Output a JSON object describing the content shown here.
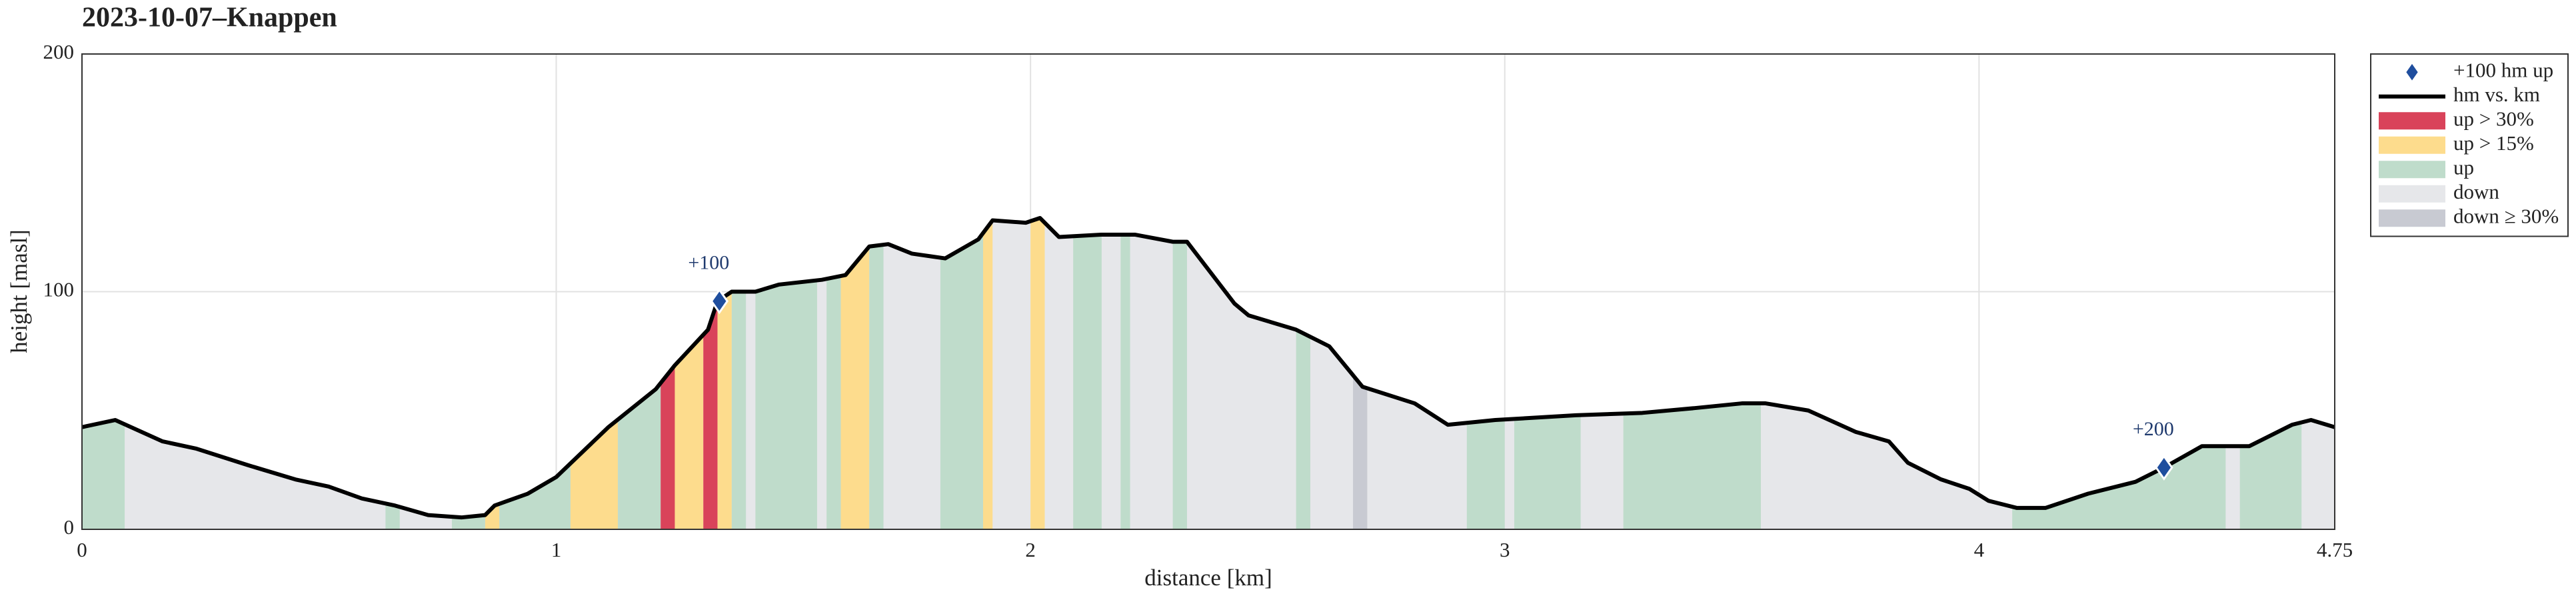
{
  "chart_data": {
    "type": "area",
    "title": "2023-10-07–Knappen",
    "xlabel": "distance [km]",
    "ylabel": "height [masl]",
    "xlim": [
      0,
      4.75
    ],
    "xticks": [
      0,
      1,
      2,
      3,
      4,
      4.75
    ],
    "ylim": [
      0,
      200
    ],
    "yticks": [
      0,
      100,
      200
    ],
    "grid": true,
    "legend": "outside right",
    "line": {
      "name": "hm vs. km",
      "color": "#000000",
      "x": [
        0,
        0.07,
        0.17,
        0.24,
        0.35,
        0.45,
        0.52,
        0.59,
        0.66,
        0.73,
        0.8,
        0.85,
        0.87,
        0.94,
        1.0,
        1.11,
        1.16,
        1.21,
        1.25,
        1.32,
        1.34,
        1.37,
        1.42,
        1.47,
        1.56,
        1.61,
        1.66,
        1.7,
        1.75,
        1.82,
        1.89,
        1.92,
        1.99,
        2.02,
        2.06,
        2.15,
        2.22,
        2.3,
        2.33,
        2.43,
        2.46,
        2.56,
        2.63,
        2.7,
        2.81,
        2.88,
        2.98,
        3.15,
        3.29,
        3.4,
        3.5,
        3.55,
        3.64,
        3.74,
        3.81,
        3.85,
        3.92,
        3.98,
        4.02,
        4.08,
        4.14,
        4.23,
        4.33,
        4.39,
        4.47,
        4.54,
        4.57,
        4.66,
        4.7,
        4.75
      ],
      "values": [
        43,
        46,
        37,
        34,
        27,
        21,
        18,
        13,
        10,
        6,
        5,
        6,
        10,
        15,
        22,
        43,
        51,
        59,
        69,
        84,
        96,
        100,
        100,
        103,
        105,
        107,
        119,
        120,
        116,
        114,
        122,
        130,
        129,
        131,
        123,
        124,
        124,
        121,
        121,
        95,
        90,
        84,
        77,
        60,
        53,
        44,
        46,
        48,
        49,
        51,
        53,
        53,
        50,
        41,
        37,
        28,
        21,
        17,
        12,
        9,
        9,
        15,
        20,
        26,
        35,
        35,
        35,
        44,
        46,
        43
      ]
    },
    "markers": {
      "name": "+100 hm up",
      "color": "#1f4e9e",
      "x": [
        1.344,
        4.39
      ],
      "values": [
        96,
        26
      ],
      "labels": [
        "+100",
        "+200"
      ]
    },
    "categories": [
      {
        "name": "up > 30%",
        "color": "#d9435a",
        "segments": [
          [
            1.22,
            1.25
          ],
          [
            1.31,
            1.34
          ]
        ]
      },
      {
        "name": "up > 15%",
        "color": "#fddc8d",
        "segments": [
          [
            0.85,
            0.88
          ],
          [
            1.03,
            1.13
          ],
          [
            1.25,
            1.31
          ],
          [
            1.34,
            1.37
          ],
          [
            1.6,
            1.66
          ],
          [
            1.9,
            1.92
          ],
          [
            2.0,
            2.03
          ]
        ]
      },
      {
        "name": "up",
        "color": "#bfdccb",
        "segments": [
          [
            0,
            0.09
          ],
          [
            0.64,
            0.67
          ],
          [
            0.78,
            0.85
          ],
          [
            0.88,
            1.03
          ],
          [
            1.13,
            1.22
          ],
          [
            1.37,
            1.4
          ],
          [
            1.42,
            1.55
          ],
          [
            1.57,
            1.6
          ],
          [
            1.66,
            1.69
          ],
          [
            1.81,
            1.9
          ],
          [
            2.09,
            2.15
          ],
          [
            2.19,
            2.21
          ],
          [
            2.3,
            2.33
          ],
          [
            2.56,
            2.59
          ],
          [
            2.92,
            3.0
          ],
          [
            3.02,
            3.16
          ],
          [
            3.25,
            3.54
          ],
          [
            4.07,
            4.52
          ],
          [
            4.55,
            4.68
          ]
        ]
      },
      {
        "name": "down",
        "color": "#e6e7ea"
      },
      {
        "name": "down ≥ 30%",
        "color": "#c8cad2",
        "segments": [
          [
            2.68,
            2.71
          ]
        ]
      }
    ]
  }
}
